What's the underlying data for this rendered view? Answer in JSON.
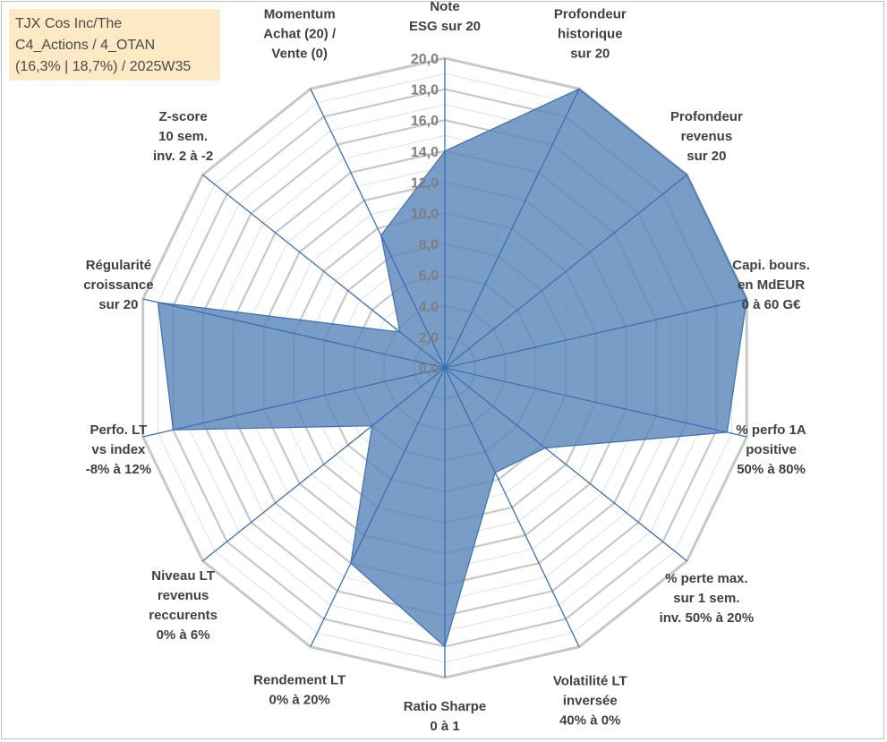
{
  "info": {
    "line1": "TJX Cos Inc/The",
    "line2": "C4_Actions / 4_OTAN",
    "line3": "(16,3% | 18,7%) / 2025W35"
  },
  "colors": {
    "fill": "#5b87ba",
    "stroke": "#3a6fb4",
    "grid_major": "#c8c8c8",
    "grid_minor": "#e0e0e0",
    "info_bg": "#fde9c4"
  },
  "chart_data": {
    "type": "radar",
    "title": "",
    "range": [
      0,
      20
    ],
    "tick_labels": [
      "0,0",
      "2,0",
      "4,0",
      "6,0",
      "8,0",
      "10,0",
      "12,0",
      "14,0",
      "16,0",
      "18,0",
      "20,0"
    ],
    "grid": true,
    "axes": [
      "Note\nESG sur 20",
      "Profondeur\nhistorique\nsur 20",
      "Profondeur\nrevenus\nsur 20",
      "Capi. bours.\nen MdEUR\n0 à 60 G€",
      "% perfo 1A\npositive\n50% à 80%",
      "% perte max.\nsur 1 sem.\ninv. 50% à 20%",
      "Volatilité LT\ninversée\n40% à 0%",
      "Ratio Sharpe\n0 à 1",
      "Rendement LT\n0% à 20%",
      "Niveau LT\nrevenus\nreccurents\n0% à 6%",
      "Perfo. LT\nvs index\n-8% à 12%",
      "Régularité\ncroissance\nsur 20",
      "Z-score\n10 sem.\ninv. 2 à -2",
      "Momentum\nAchat (20) /\nVente (0)"
    ],
    "series": [
      {
        "values": [
          14.0,
          20.0,
          20.0,
          20.0,
          18.7,
          8.3,
          7.5,
          18.0,
          14.0,
          6.0,
          18.0,
          19.0,
          3.7,
          9.5
        ]
      }
    ]
  }
}
